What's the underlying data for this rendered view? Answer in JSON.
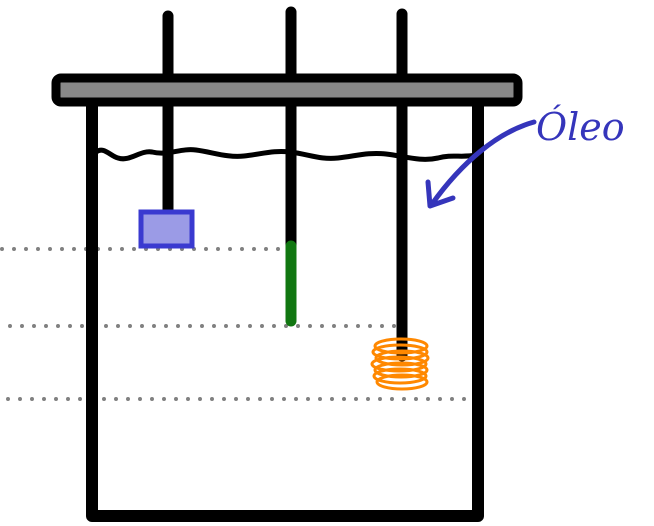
{
  "diagram": {
    "oil_label": "Óleo",
    "colors": {
      "outline": "#000000",
      "lid_fill": "#888888",
      "dotted_line": "#808080",
      "label_ink": "#3535bb",
      "block_fill": "#9b9be6",
      "block_stroke": "#3a3ad0",
      "rod_tip": "#117711",
      "coil": "#ff8800"
    }
  }
}
